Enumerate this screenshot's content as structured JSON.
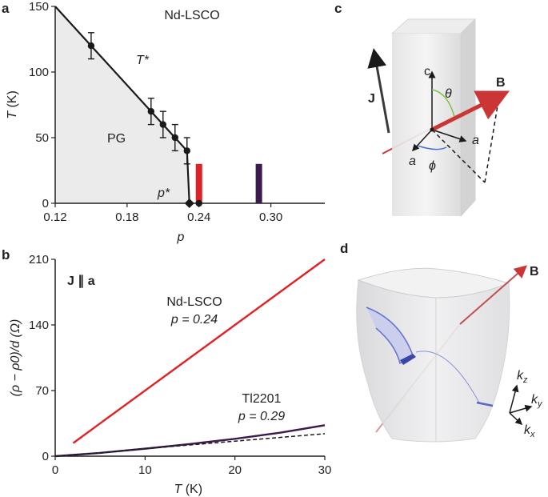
{
  "panel_labels": {
    "a": "a",
    "b": "b",
    "c": "c",
    "d": "d"
  },
  "colors": {
    "nd_lsco": "#e02125",
    "tl2201": "#3b1a4e",
    "pg_fill": "#ebebeb",
    "boundary": "#1a1a1a",
    "B_arrow": "#cc3535",
    "theta": "#7fc242",
    "phi": "#4a6fd0"
  },
  "chart_data": [
    {
      "type": "line",
      "panel": "a",
      "title": "Nd-LSCO",
      "xlabel": "p",
      "ylabel": "T (K)",
      "xlim": [
        0.12,
        0.345
      ],
      "ylim": [
        0,
        150
      ],
      "x_ticks": [
        "0.12",
        "0.18",
        "0.24",
        "0.30"
      ],
      "x_tick_values": [
        0.12,
        0.18,
        0.24,
        0.3
      ],
      "y_ticks": [
        "0",
        "50",
        "100",
        "150"
      ],
      "y_tick_values": [
        0,
        50,
        100,
        150
      ],
      "region_labels": {
        "tstar": "T*",
        "pg": "PG",
        "pstar": "p*"
      },
      "series": [
        {
          "points": [
            {
              "x": 0.12,
              "y": 150
            },
            {
              "x": 0.15,
              "y": 120,
              "err": 10
            },
            {
              "x": 0.2,
              "y": 70,
              "err": 10
            },
            {
              "x": 0.21,
              "y": 60,
              "err": 10
            },
            {
              "x": 0.22,
              "y": 50,
              "err": 10
            },
            {
              "x": 0.23,
              "y": 40,
              "err": 10
            },
            {
              "x": 0.232,
              "y": 0
            }
          ]
        }
      ],
      "pstar_marker": {
        "x": 0.232,
        "y": 0
      },
      "sample_points": [
        {
          "x": 0.24,
          "y": 0
        }
      ],
      "sample_bars": [
        {
          "x": 0.24,
          "ymax": 30,
          "color": "#e02125"
        },
        {
          "x": 0.29,
          "ymax": 30,
          "color": "#3b1a4e"
        }
      ]
    },
    {
      "type": "line",
      "panel": "b",
      "xlabel": "T (K)",
      "ylabel": "(ρ − ρ0)/d (Ω)",
      "xlim": [
        0,
        30
      ],
      "ylim": [
        0,
        210
      ],
      "x_ticks": [
        "0",
        "10",
        "20",
        "30"
      ],
      "x_tick_values": [
        0,
        10,
        20,
        30
      ],
      "y_ticks": [
        "0",
        "70",
        "140",
        "210"
      ],
      "y_tick_values": [
        0,
        70,
        140,
        210
      ],
      "annotation": "J ∥ a",
      "series": [
        {
          "name": "Nd-LSCO",
          "label_line2": "p = 0.24",
          "color": "#e02125",
          "x": [
            2,
            30
          ],
          "y": [
            14,
            210
          ]
        },
        {
          "name": "Tl2201",
          "label_line2": "p = 0.29",
          "color": "#3b1a4e",
          "x": [
            0,
            5,
            10,
            15,
            20,
            25,
            30
          ],
          "y": [
            0,
            3.5,
            8,
            13,
            18.5,
            25,
            33
          ]
        },
        {
          "color": "#1a1a1a",
          "dash": true,
          "x": [
            0,
            5,
            10,
            15,
            20,
            25,
            30
          ],
          "y": [
            0,
            3.5,
            8,
            12,
            16,
            20,
            24
          ]
        }
      ]
    }
  ],
  "diagram_c": {
    "J": "J",
    "c": "c",
    "theta": "θ",
    "B": "B",
    "a_right": "a",
    "a_front": "a",
    "phi": "ϕ"
  },
  "diagram_d": {
    "B": "B",
    "kz": "k",
    "kz_sub": "z",
    "ky": "k",
    "ky_sub": "y",
    "kx": "k",
    "kx_sub": "x"
  }
}
